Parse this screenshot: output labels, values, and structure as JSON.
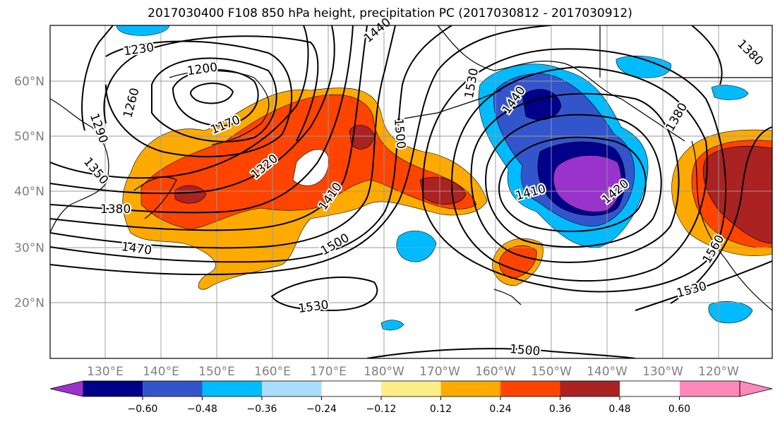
{
  "title": "2017030400 F108 850 hPa height, precipitation PC (2017030812 - 2017030912)",
  "lat_labels": [
    "60°N",
    "50°N",
    "40°N",
    "30°N",
    "20°N"
  ],
  "lon_labels": [
    "130°E",
    "140°E",
    "150°E",
    "160°E",
    "170°E",
    "180°W",
    "170°W",
    "160°W",
    "150°W",
    "140°W",
    "130°W",
    "120°W"
  ],
  "contour_labels": [
    "1230",
    "1200",
    "1170",
    "1260",
    "1290",
    "1350",
    "1380",
    "1320",
    "1410",
    "1440",
    "1470",
    "1500",
    "1500",
    "1500",
    "1530",
    "1530",
    "1530",
    "1560",
    "1410",
    "1420",
    "1440",
    "1380",
    "1380",
    "1500"
  ],
  "colorbar": {
    "colors": [
      "#9933cc",
      "#000088",
      "#3355cc",
      "#00bbff",
      "#aaddff",
      "#ffffff",
      "#ffee88",
      "#ffaa00",
      "#ff4400",
      "#aa2222",
      "#ff88bb"
    ],
    "ticks": [
      "−0.60",
      "−0.48",
      "−0.36",
      "−0.24",
      "−0.12",
      "0.12",
      "0.24",
      "0.36",
      "0.48",
      "0.60"
    ]
  },
  "palette": {
    "grid": "#999999",
    "axis_text": "#808080",
    "contour": "#000000"
  }
}
